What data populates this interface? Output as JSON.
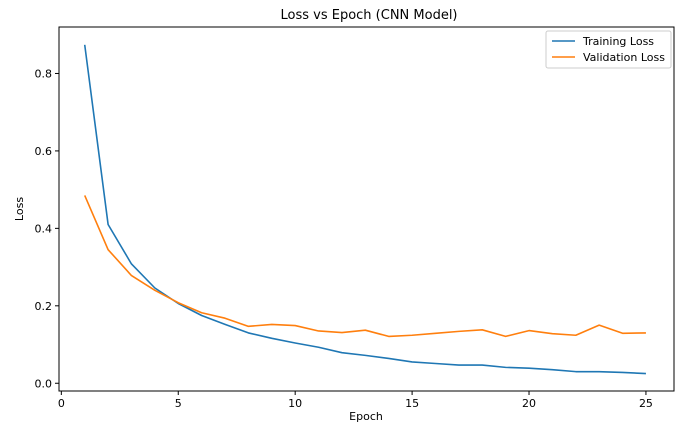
{
  "chart_data": {
    "type": "line",
    "title": "Loss vs Epoch (CNN Model)",
    "xlabel": "Epoch",
    "ylabel": "Loss",
    "xlim": [
      -0.1,
      26.2
    ],
    "ylim": [
      -0.02,
      0.92
    ],
    "xticks": [
      0,
      5,
      10,
      15,
      20,
      25
    ],
    "yticks": [
      0.0,
      0.2,
      0.4,
      0.6,
      0.8
    ],
    "xtick_labels": [
      "0",
      "5",
      "10",
      "15",
      "20",
      "25"
    ],
    "ytick_labels": [
      "0.0",
      "0.2",
      "0.4",
      "0.6",
      "0.8"
    ],
    "grid": false,
    "legend_position": "top-right",
    "x": [
      1,
      2,
      3,
      4,
      5,
      6,
      7,
      8,
      9,
      10,
      11,
      12,
      13,
      14,
      15,
      16,
      17,
      18,
      19,
      20,
      21,
      22,
      23,
      24,
      25
    ],
    "series": [
      {
        "name": "Training Loss",
        "color": "#1f77b4",
        "values": [
          0.874,
          0.41,
          0.308,
          0.246,
          0.206,
          0.175,
          0.152,
          0.13,
          0.116,
          0.104,
          0.093,
          0.079,
          0.072,
          0.064,
          0.055,
          0.051,
          0.047,
          0.047,
          0.041,
          0.039,
          0.035,
          0.03,
          0.03,
          0.028,
          0.025
        ]
      },
      {
        "name": "Validation Loss",
        "color": "#ff7f0e",
        "values": [
          0.485,
          0.345,
          0.278,
          0.24,
          0.208,
          0.182,
          0.168,
          0.147,
          0.152,
          0.149,
          0.135,
          0.131,
          0.137,
          0.121,
          0.124,
          0.129,
          0.134,
          0.138,
          0.121,
          0.136,
          0.128,
          0.124,
          0.15,
          0.129,
          0.13
        ]
      }
    ]
  }
}
